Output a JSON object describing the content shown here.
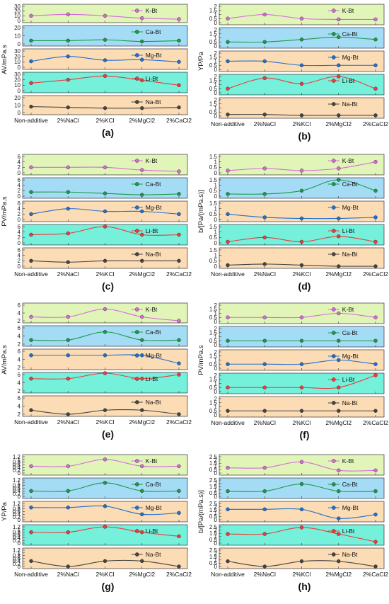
{
  "colors": {
    "band_bg": [
      "#e1f5b9",
      "#a5dcf5",
      "#fbdcb4",
      "#74f0db",
      "#fbdcb4"
    ],
    "series_colors": {
      "K-Bt": "#d66bd6",
      "Ca-Bt": "#1a9a48",
      "Mg-Bt": "#1f6fd1",
      "Li-Bt": "#ee3b3b",
      "Na-Bt": "#444444"
    }
  },
  "chart_data": [
    {
      "panel": "(a)",
      "type": "line",
      "ylabel": "AV/mPa.s",
      "categories": [
        "Non-additive",
        "2%NaCl",
        "2%KCl",
        "2%MgCl2",
        "2%CaCl2"
      ],
      "series": [
        {
          "name": "K-Bt",
          "values": [
            10,
            13,
            10,
            5,
            3
          ],
          "ylim": [
            0,
            30
          ],
          "ticks": [
            0,
            10,
            20,
            30
          ]
        },
        {
          "name": "Ca-Bt",
          "values": [
            4,
            4,
            5,
            3,
            4
          ],
          "ylim": [
            0,
            20
          ],
          "ticks": [
            0,
            10,
            20
          ]
        },
        {
          "name": "Mg-Bt",
          "values": [
            11,
            20,
            13,
            14,
            10
          ],
          "ylim": [
            0,
            30
          ],
          "ticks": [
            0,
            10,
            20,
            30
          ]
        },
        {
          "name": "Li-Bt",
          "values": [
            14,
            20,
            27,
            19,
            10
          ],
          "ylim": [
            0,
            30
          ],
          "ticks": [
            0,
            10,
            20,
            30
          ]
        },
        {
          "name": "Na-Bt",
          "values": [
            8,
            7,
            6,
            6,
            7
          ],
          "ylim": [
            0,
            20
          ],
          "ticks": [
            0,
            10,
            20
          ]
        }
      ]
    },
    {
      "panel": "(b)",
      "type": "line",
      "ylabel": "YP/Pa",
      "categories": [
        "Non-additive",
        "2%NaCl",
        "2%KCl",
        "2%MgCl2",
        "2%CaCl2"
      ],
      "series": [
        {
          "name": "K-Bt",
          "values": [
            0.5,
            1.0,
            0.5,
            0.4,
            0.4
          ],
          "ylim": [
            0,
            2.0
          ],
          "ticks": [
            0,
            0.5,
            1.0,
            1.5,
            2.0
          ]
        },
        {
          "name": "Ca-Bt",
          "values": [
            0.5,
            0.5,
            0.8,
            1.1,
            0.8
          ],
          "ylim": [
            0,
            2.0
          ],
          "ticks": [
            0,
            0.5,
            1.0,
            1.5,
            2.0
          ]
        },
        {
          "name": "Mg-Bt",
          "values": [
            1.0,
            1.0,
            0.5,
            0.5,
            0.5
          ],
          "ylim": [
            0,
            2.0
          ],
          "ticks": [
            0,
            0.5,
            1.0,
            1.5,
            2.0
          ]
        },
        {
          "name": "Li-Bt",
          "values": [
            0.5,
            1.8,
            1.1,
            2.0,
            0.5
          ],
          "ylim": [
            0,
            2.0
          ],
          "ticks": [
            0,
            0.5,
            1.0,
            1.5,
            2.0
          ]
        },
        {
          "name": "Na-Bt",
          "values": [
            0.2,
            0.2,
            0.1,
            0.1,
            0.1
          ],
          "ylim": [
            0,
            2.0
          ],
          "ticks": [
            0,
            0.5,
            1.0,
            1.5,
            2.0
          ]
        }
      ]
    },
    {
      "panel": "(c)",
      "type": "line",
      "ylabel": "PV/mPa.s",
      "categories": [
        "Non-additive",
        "2%NaCl",
        "2%KCl",
        "2%MgCl2",
        "2%CaCl2"
      ],
      "series": [
        {
          "name": "K-Bt",
          "values": [
            2,
            2,
            2,
            1,
            0.5
          ],
          "ylim": [
            0,
            6
          ],
          "ticks": [
            0,
            2,
            4,
            6
          ]
        },
        {
          "name": "Ca-Bt",
          "values": [
            1.5,
            1.5,
            1.0,
            0.5,
            0.8
          ],
          "ylim": [
            0,
            6
          ],
          "ticks": [
            0,
            2,
            4,
            6
          ]
        },
        {
          "name": "Mg-Bt",
          "values": [
            2,
            4,
            3,
            3,
            2
          ],
          "ylim": [
            0,
            6
          ],
          "ticks": [
            0,
            2,
            4,
            6
          ]
        },
        {
          "name": "Li-Bt",
          "values": [
            3,
            3.5,
            6,
            3,
            3
          ],
          "ylim": [
            0,
            6
          ],
          "ticks": [
            0,
            2,
            4,
            6
          ]
        },
        {
          "name": "Na-Bt",
          "values": [
            2,
            1.5,
            2,
            2,
            2
          ],
          "ylim": [
            0,
            6
          ],
          "ticks": [
            0,
            2,
            4,
            6
          ]
        }
      ]
    },
    {
      "panel": "(d)",
      "type": "line",
      "ylabel": "b/[Pa/(mPa.s)]",
      "categories": [
        "Non-additive",
        "2%NaCl",
        "2%KCl",
        "2%MgCl2",
        "2%CaCl2"
      ],
      "series": [
        {
          "name": "K-Bt",
          "values": [
            0.2,
            0.4,
            0.2,
            0.4,
            1.0
          ],
          "ylim": [
            0,
            1.5
          ],
          "ticks": [
            0,
            0.5,
            1.0,
            1.5
          ]
        },
        {
          "name": "Ca-Bt",
          "values": [
            0.2,
            0.2,
            0.5,
            1.5,
            0.5
          ],
          "ylim": [
            0,
            1.5
          ],
          "ticks": [
            0,
            0.5,
            1.0,
            1.5
          ]
        },
        {
          "name": "Mg-Bt",
          "values": [
            0.5,
            0.2,
            0.1,
            0.1,
            0.2
          ],
          "ylim": [
            0,
            1.5
          ],
          "ticks": [
            0,
            0.5,
            1.0,
            1.5
          ]
        },
        {
          "name": "Li-Bt",
          "values": [
            0.1,
            0.5,
            0.1,
            0.6,
            0.1
          ],
          "ylim": [
            0,
            1.5
          ],
          "ticks": [
            0,
            0.5,
            1.0,
            1.5
          ]
        },
        {
          "name": "Na-Bt",
          "values": [
            0.1,
            0.2,
            0.1,
            0.0,
            0.0
          ],
          "ylim": [
            0,
            1.5
          ],
          "ticks": [
            0,
            0.5,
            1.0,
            1.5
          ]
        }
      ]
    },
    {
      "panel": "(e)",
      "type": "line",
      "ylabel": "AV/mPa.s",
      "categories": [
        "Non-additive",
        "2%NaCl",
        "2%KCl",
        "2%MgCl2",
        "2%CaCl2"
      ],
      "series": [
        {
          "name": "K-Bt",
          "values": [
            3,
            3,
            5,
            3,
            2
          ],
          "ylim": [
            2,
            6
          ],
          "ticks": [
            2,
            4,
            6
          ]
        },
        {
          "name": "Ca-Bt",
          "values": [
            3,
            3,
            5,
            3,
            3
          ],
          "ylim": [
            2,
            6
          ],
          "ticks": [
            2,
            4,
            6
          ]
        },
        {
          "name": "Mg-Bt",
          "values": [
            5,
            5,
            5,
            5,
            3
          ],
          "ylim": [
            2,
            6
          ],
          "ticks": [
            2,
            4,
            6
          ]
        },
        {
          "name": "Li-Bt",
          "values": [
            5,
            5,
            7,
            5,
            6
          ],
          "ylim": [
            2,
            6
          ],
          "ticks": [
            2,
            4,
            6
          ]
        },
        {
          "name": "Na-Bt",
          "values": [
            3,
            2,
            3,
            3,
            2
          ],
          "ylim": [
            2,
            6
          ],
          "ticks": [
            2,
            4,
            6
          ]
        }
      ]
    },
    {
      "panel": "(f)",
      "type": "line",
      "ylabel": "PV/mPa.s",
      "categories": [
        "Non-additive",
        "2%NaCl",
        "2%KCl",
        "2%MgCl2",
        "2%CaCl2"
      ],
      "series": [
        {
          "name": "K-Bt",
          "values": [
            0.5,
            0.5,
            0.5,
            1.0,
            0.5
          ],
          "ylim": [
            0,
            2.0
          ],
          "ticks": [
            0,
            0.5,
            1.0,
            1.5,
            2.0
          ]
        },
        {
          "name": "Ca-Bt",
          "values": [
            0.5,
            0.5,
            0.5,
            0.5,
            0.5
          ],
          "ylim": [
            0,
            2.0
          ],
          "ticks": [
            0,
            0.5,
            1.0,
            1.5,
            2.0
          ]
        },
        {
          "name": "Mg-Bt",
          "values": [
            0.5,
            0.5,
            0.5,
            1.0,
            0.5
          ],
          "ylim": [
            0,
            2.0
          ],
          "ticks": [
            0,
            0.5,
            1.0,
            1.5,
            2.0
          ]
        },
        {
          "name": "Li-Bt",
          "values": [
            0.5,
            0.5,
            0.5,
            0.5,
            2.0
          ],
          "ylim": [
            0,
            2.0
          ],
          "ticks": [
            0,
            0.5,
            1.0,
            1.5,
            2.0
          ]
        },
        {
          "name": "Na-Bt",
          "values": [
            0.5,
            0.5,
            0.5,
            0.5,
            0.5
          ],
          "ylim": [
            0,
            2.0
          ],
          "ticks": [
            0,
            0.5,
            1.0,
            1.5,
            2.0
          ]
        }
      ]
    },
    {
      "panel": "(g)",
      "type": "line",
      "ylabel": "YP/Pa",
      "categories": [
        "Non-additive",
        "2%NaCl",
        "2%KCl",
        "2%MgCl2",
        "2%CaCl2"
      ],
      "series": [
        {
          "name": "K-Bt",
          "values": [
            0.5,
            0.5,
            1.0,
            0.5,
            0.5
          ],
          "ylim": [
            0,
            1.2
          ],
          "ticks": [
            0,
            0.2,
            0.4,
            0.6,
            0.8,
            1.0,
            1.2
          ]
        },
        {
          "name": "Ca-Bt",
          "values": [
            0.4,
            0.4,
            1.0,
            0.4,
            0.4
          ],
          "ylim": [
            0,
            1.2
          ],
          "ticks": [
            0,
            0.2,
            0.4,
            0.6,
            0.8,
            1.0,
            1.2
          ]
        },
        {
          "name": "Mg-Bt",
          "values": [
            0.9,
            0.9,
            1.0,
            0.4,
            0.5
          ],
          "ylim": [
            0,
            1.2
          ],
          "ticks": [
            0,
            0.2,
            0.4,
            0.6,
            0.8,
            1.0,
            1.2
          ]
        },
        {
          "name": "Li-Bt",
          "values": [
            0.8,
            0.8,
            1.2,
            0.8,
            0.5
          ],
          "ylim": [
            0,
            1.2
          ],
          "ticks": [
            0,
            0.2,
            0.4,
            0.6,
            0.8,
            1.0,
            1.2
          ]
        },
        {
          "name": "Na-Bt",
          "values": [
            0.4,
            0.0,
            0.4,
            0.4,
            0.0
          ],
          "ylim": [
            0,
            1.2
          ],
          "ticks": [
            0,
            0.2,
            0.4,
            0.6,
            0.8,
            1.0,
            1.2
          ]
        }
      ]
    },
    {
      "panel": "(h)",
      "type": "line",
      "ylabel": "b/[Pa/(mPa.s)]",
      "categories": [
        "Non-additive",
        "2%NaCl",
        "2%KCl",
        "2%MgCl2",
        "2%CaCl2"
      ],
      "series": [
        {
          "name": "K-Bt",
          "values": [
            0.8,
            0.8,
            1.7,
            0.4,
            0.4
          ],
          "ylim": [
            0,
            2.5
          ],
          "ticks": [
            0,
            0.5,
            1.0,
            1.5,
            2.0,
            2.5
          ]
        },
        {
          "name": "Ca-Bt",
          "values": [
            0.8,
            0.8,
            1.9,
            0.8,
            0.8
          ],
          "ylim": [
            0,
            2.5
          ],
          "ticks": [
            0,
            0.5,
            1.0,
            1.5,
            2.0,
            2.5
          ]
        },
        {
          "name": "Mg-Bt",
          "values": [
            1.6,
            1.6,
            1.6,
            0.2,
            0.8
          ],
          "ylim": [
            0,
            2.5
          ],
          "ticks": [
            0,
            0.5,
            1.0,
            1.5,
            2.0,
            2.5
          ]
        },
        {
          "name": "Li-Bt",
          "values": [
            1.4,
            1.4,
            2.4,
            1.4,
            0.2
          ],
          "ylim": [
            0,
            2.5
          ],
          "ticks": [
            0,
            0.5,
            1.0,
            1.5,
            2.0,
            2.5
          ]
        },
        {
          "name": "Na-Bt",
          "values": [
            0.8,
            0.0,
            0.8,
            0.8,
            0.0
          ],
          "ylim": [
            0,
            2.5
          ],
          "ticks": [
            0,
            0.5,
            1.0,
            1.5,
            2.0,
            2.5
          ]
        }
      ]
    }
  ]
}
